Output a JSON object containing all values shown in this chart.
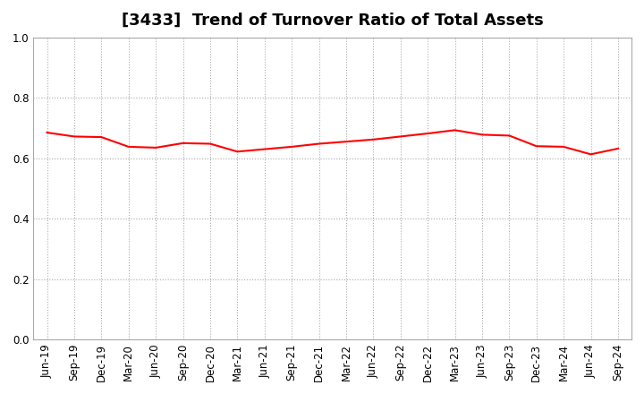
{
  "title": "[3433]  Trend of Turnover Ratio of Total Assets",
  "title_fontsize": 13,
  "line_color": "#FF0000",
  "line_width": 1.5,
  "background_color": "#FFFFFF",
  "plot_bg_color": "#FFFFFF",
  "ylim": [
    0.0,
    1.0
  ],
  "yticks": [
    0.0,
    0.2,
    0.4,
    0.6,
    0.8,
    1.0
  ],
  "xlabels": [
    "Jun-19",
    "Sep-19",
    "Dec-19",
    "Mar-20",
    "Jun-20",
    "Sep-20",
    "Dec-20",
    "Mar-21",
    "Jun-21",
    "Sep-21",
    "Dec-21",
    "Mar-22",
    "Jun-22",
    "Sep-22",
    "Dec-22",
    "Mar-23",
    "Jun-23",
    "Sep-23",
    "Dec-23",
    "Mar-24",
    "Jun-24",
    "Sep-24"
  ],
  "values": [
    0.685,
    0.672,
    0.67,
    0.638,
    0.635,
    0.65,
    0.648,
    0.622,
    0.63,
    0.638,
    0.648,
    0.655,
    0.662,
    0.672,
    0.682,
    0.693,
    0.678,
    0.675,
    0.64,
    0.638,
    0.613,
    0.632
  ],
  "grid_color": "#AAAAAA",
  "grid_linestyle": ":",
  "grid_linewidth": 0.8,
  "tick_label_fontsize": 8.5,
  "spine_color": "#AAAAAA",
  "fill_between": false
}
